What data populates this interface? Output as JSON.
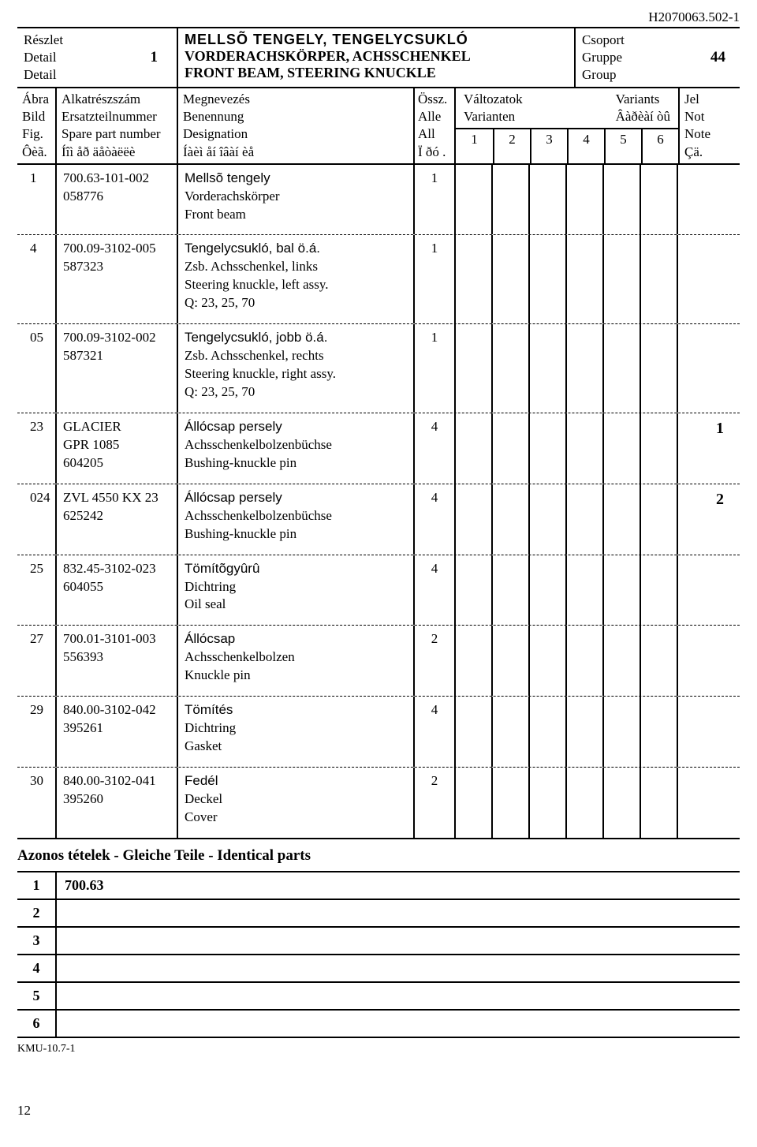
{
  "docId": "H2070063.502-1",
  "header": {
    "left": {
      "l1": "Részlet",
      "l2": "Detail",
      "l3": "Detail",
      "num": "1"
    },
    "mid": {
      "l1": "MELLSÕ TENGELY, TENGELYCSUKLÓ",
      "l2": "VORDERACHSKÖRPER, ACHSSCHENKEL",
      "l3": "FRONT BEAM, STEERING KNUCKLE"
    },
    "right": {
      "l1": "Csoport",
      "l2": "Gruppe",
      "l3": "Group",
      "num": "44"
    }
  },
  "subheader": {
    "c1": {
      "l1": "Ábra",
      "l2": "Bild",
      "l3": "Fig.",
      "l4": "Ôèã."
    },
    "c2": {
      "l1": "Alkatrészszám",
      "l2": "Ersatzteilnummer",
      "l3": "Spare part number",
      "l4": "Íîì åð äåòàëëè"
    },
    "c3": {
      "l1": "Megnevezés",
      "l2": "Benennung",
      "l3": "Designation",
      "l4": "Íàèì åí îâàí èå"
    },
    "c4": {
      "l1": "Össz.",
      "l2": "Alle",
      "l3": "All",
      "l4": "Ï ðó ."
    },
    "variants": {
      "l1a": "Változatok",
      "l1b": "Variants",
      "l2a": "Varianten",
      "l2b": "Âàðèàí òû"
    },
    "v": [
      "1",
      "2",
      "3",
      "4",
      "5",
      "6"
    ],
    "c6": {
      "l1": "Jel",
      "l2": "Not",
      "l3": "Note",
      "l4": "Çä."
    }
  },
  "rows": [
    {
      "fig": "1",
      "part1": "700.63-101-002",
      "part2": "058776",
      "d1": "Mellsõ tengely",
      "d2": "Vorderachskörper",
      "d3": "Front beam",
      "qty": "1",
      "note": ""
    },
    {
      "fig": "4",
      "part1": "700.09-3102-005",
      "part2": "587323",
      "d1": "Tengelycsukló, bal ö.á.",
      "d2": "Zsb. Achsschenkel, links",
      "d3": "Steering knuckle, left assy.",
      "d4": "Q: 23, 25, 70",
      "qty": "1",
      "note": ""
    },
    {
      "fig": "05",
      "part1": "700.09-3102-002",
      "part2": "587321",
      "d1": "Tengelycsukló, jobb ö.á.",
      "d2": "Zsb. Achsschenkel, rechts",
      "d3": "Steering knuckle, right assy.",
      "d4": "Q: 23, 25, 70",
      "qty": "1",
      "note": ""
    },
    {
      "fig": "23",
      "part1": "GLACIER",
      "part1b": "GPR 1085",
      "part2": "604205",
      "d1": "Állócsap persely",
      "d2": "Achsschenkelbolzenbüchse",
      "d3": "Bushing-knuckle pin",
      "qty": "4",
      "note": "1"
    },
    {
      "fig": "024",
      "part1": "ZVL 4550 KX 23",
      "part2": "625242",
      "d1": "Állócsap persely",
      "d2": "Achsschenkelbolzenbüchse",
      "d3": "Bushing-knuckle pin",
      "qty": "4",
      "note": "2"
    },
    {
      "fig": "25",
      "part1": "832.45-3102-023",
      "part2": "604055",
      "d1": "Tömítõgyûrû",
      "d2": "Dichtring",
      "d3": "Oil seal",
      "qty": "4",
      "note": ""
    },
    {
      "fig": "27",
      "part1": "700.01-3101-003",
      "part2": "556393",
      "d1": "Állócsap",
      "d2": "Achsschenkelbolzen",
      "d3": "Knuckle pin",
      "qty": "2",
      "note": ""
    },
    {
      "fig": "29",
      "part1": "840.00-3102-042",
      "part2": "395261",
      "d1": "Tömítés",
      "d2": "Dichtring",
      "d3": "Gasket",
      "qty": "4",
      "note": ""
    },
    {
      "fig": "30",
      "part1": "840.00-3102-041",
      "part2": "395260",
      "d1": "Fedél",
      "d2": "Deckel",
      "d3": "Cover",
      "qty": "2",
      "note": ""
    }
  ],
  "identical": {
    "title": "Azonos tételek - Gleiche Teile - Identical parts",
    "rows": [
      {
        "n": "1",
        "v": "700.63"
      },
      {
        "n": "2",
        "v": ""
      },
      {
        "n": "3",
        "v": ""
      },
      {
        "n": "4",
        "v": ""
      },
      {
        "n": "5",
        "v": ""
      },
      {
        "n": "6",
        "v": ""
      }
    ]
  },
  "footer": "KMU-10.7-1",
  "pagenum": "12"
}
